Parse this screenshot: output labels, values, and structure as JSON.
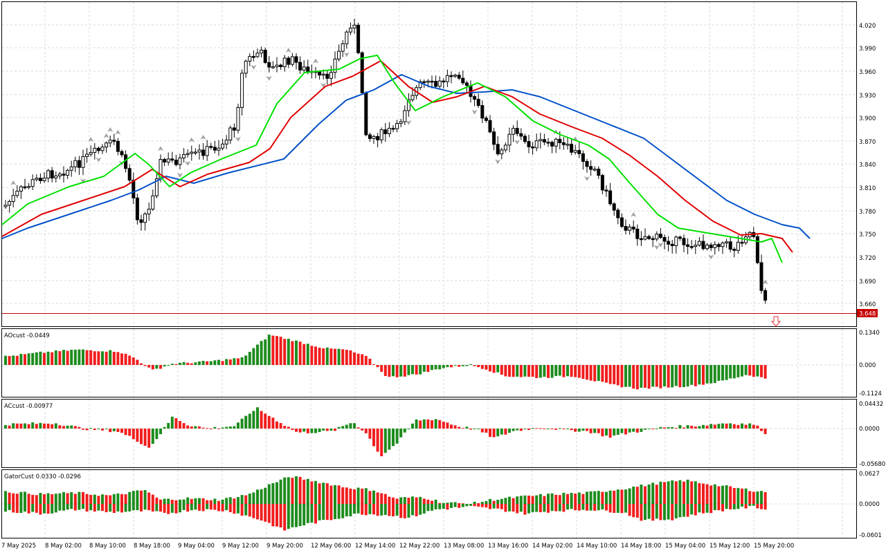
{
  "colors": {
    "background": "#ffffff",
    "grid": "#d8d8d8",
    "bull_candle": "#ffffff",
    "bear_candle": "#000000",
    "jaw": "#0050c8",
    "teeth": "#e00000",
    "lips": "#00e000",
    "histo_up": "#1e8c1e",
    "histo_down": "#f01e1e",
    "price_line": "#c80000",
    "fractal": "#a0a0a0"
  },
  "main_chart": {
    "price_axis_labels": [
      "4.020",
      "3.990",
      "3.960",
      "3.930",
      "3.900",
      "3.870",
      "3.840",
      "3.810",
      "3.780",
      "3.750",
      "3.720",
      "3.690",
      "3.660"
    ],
    "current_price_label": "3.648",
    "indicators": [
      "Alligator jaw",
      "Alligator teeth",
      "Alligator lips",
      "Fractals"
    ],
    "last_signal_icon": "down-arrow-icon"
  },
  "ao_pane": {
    "label": "AOcust -0.0449",
    "axis_labels": [
      "0.1340",
      "0.000",
      "-0.1124"
    ]
  },
  "ac_pane": {
    "label": "ACcust -0.00977",
    "axis_labels": [
      "0.04432",
      "0.0000",
      "-0.05680"
    ]
  },
  "gator_pane": {
    "label": "GatorCust 0.0330 -0.0296",
    "axis_labels": [
      "0.0627",
      "0.0000",
      "-0.0601"
    ]
  },
  "time_axis": {
    "labels": [
      "7 May 2025",
      "8 May 02:00",
      "8 May 10:00",
      "8 May 18:00",
      "9 May 04:00",
      "9 May 12:00",
      "9 May 20:00",
      "12 May 06:00",
      "12 May 14:00",
      "12 May 22:00",
      "13 May 08:00",
      "13 May 16:00",
      "14 May 02:00",
      "14 May 10:00",
      "14 May 18:00",
      "15 May 04:00",
      "15 May 12:00",
      "15 May 20:00"
    ]
  }
}
